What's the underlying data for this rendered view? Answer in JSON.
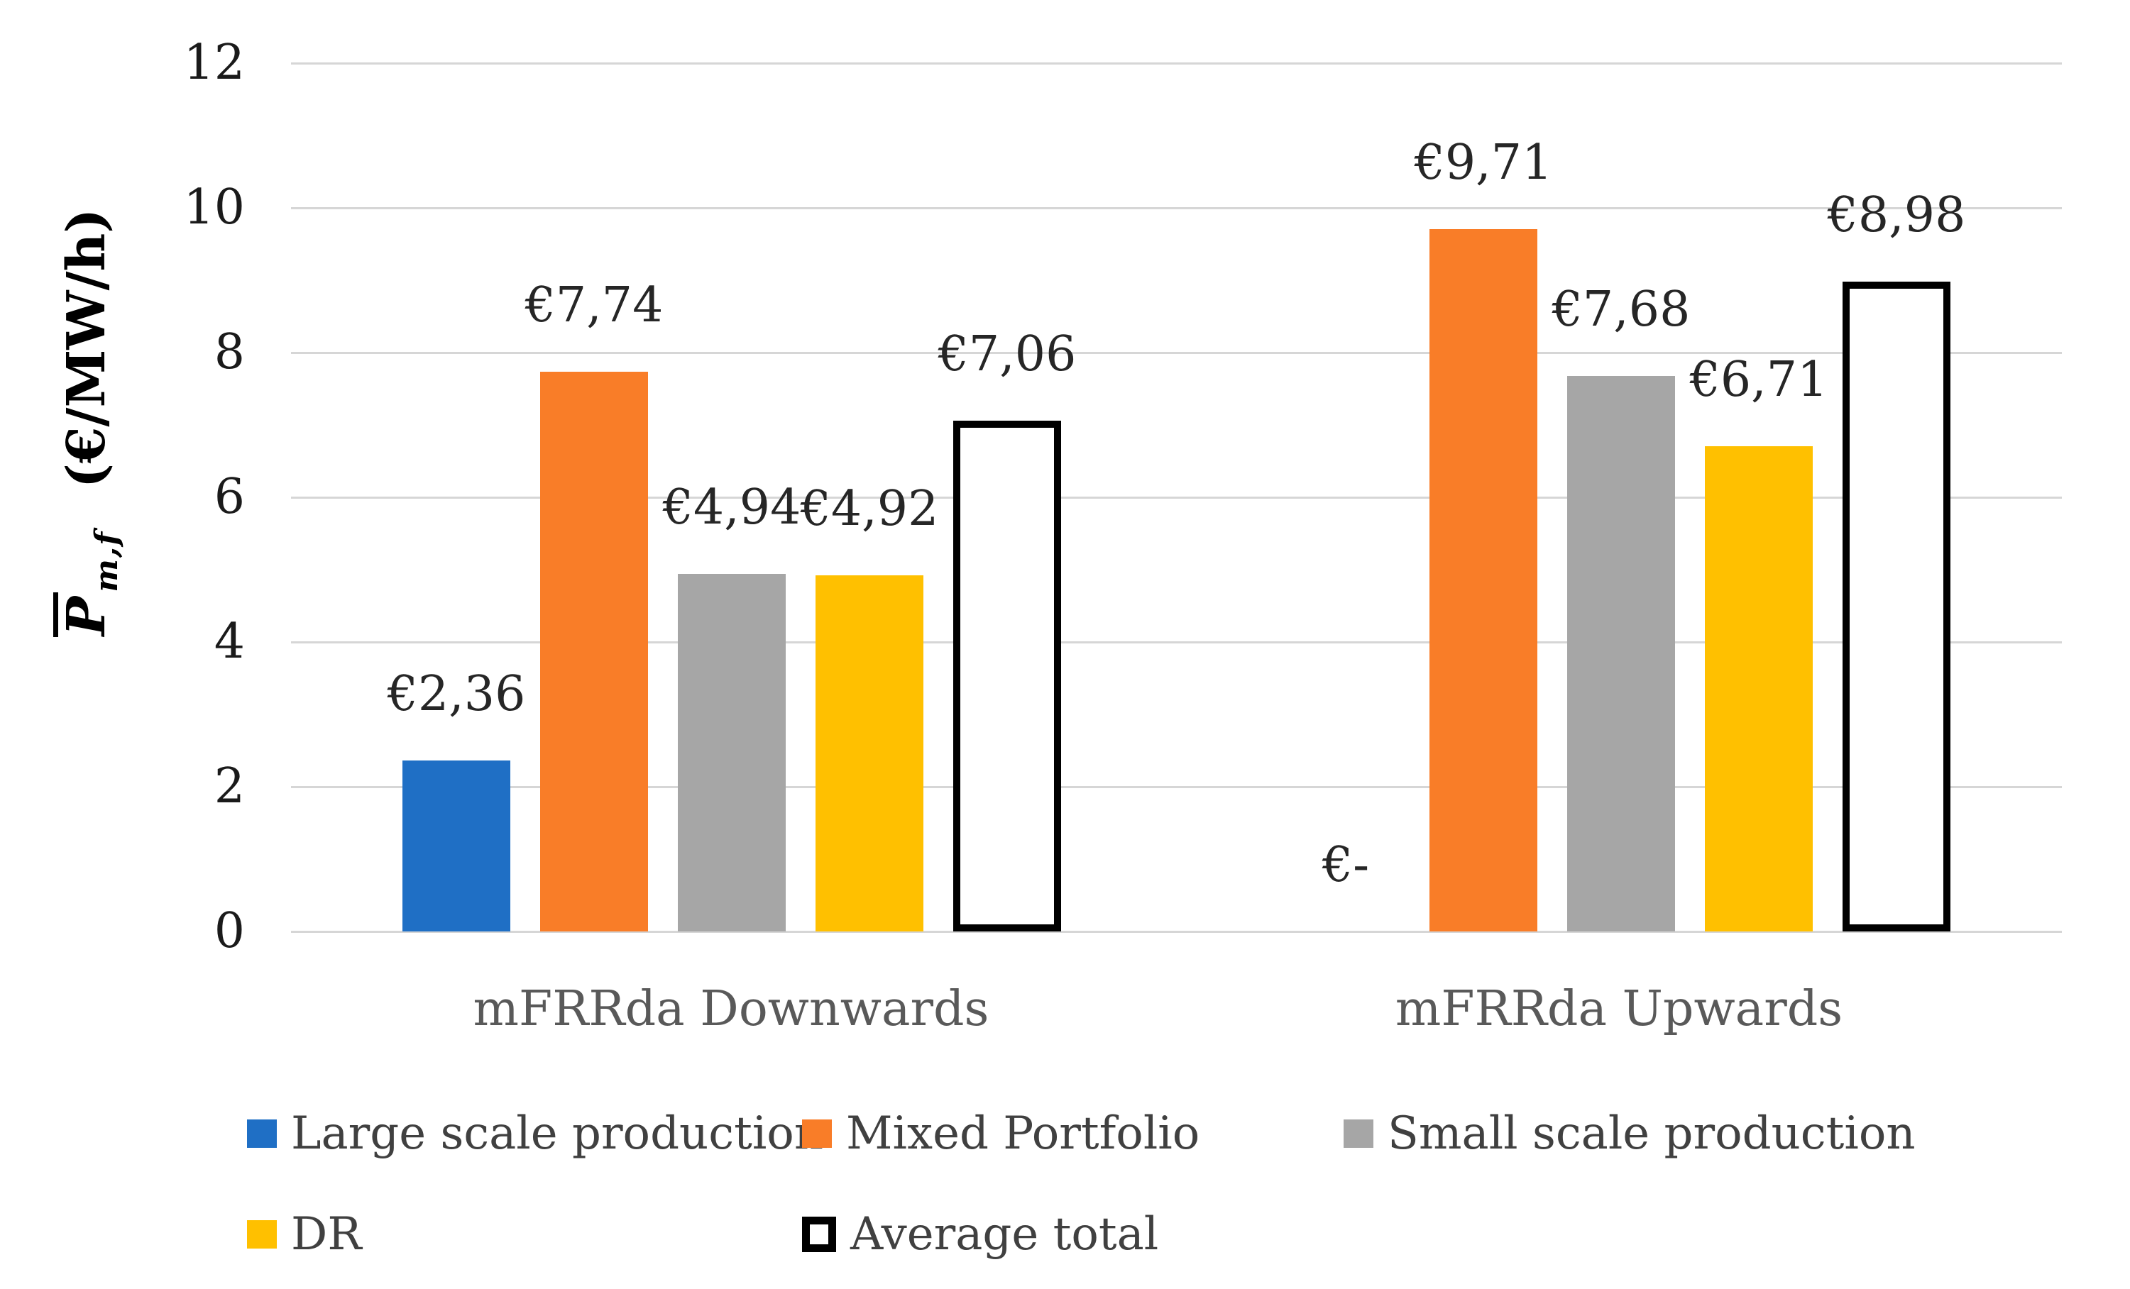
{
  "chart_data": {
    "type": "bar",
    "title": "",
    "categories": [
      "mFRRda Downwards",
      "mFRRda Upwards"
    ],
    "series": [
      {
        "name": "Large scale production",
        "color": "#1F6FC5",
        "values": [
          2.36,
          0
        ],
        "data_labels": [
          "€2,36",
          "€-"
        ]
      },
      {
        "name": "Mixed Portfolio",
        "color": "#F97D28",
        "values": [
          7.74,
          9.71
        ],
        "data_labels": [
          "€7,74",
          "€9,71"
        ]
      },
      {
        "name": "Small scale production",
        "color": "#A6A6A6",
        "values": [
          4.94,
          7.68
        ],
        "data_labels": [
          "€4,94",
          "€7,68"
        ]
      },
      {
        "name": "DR",
        "color": "#FFC000",
        "values": [
          4.92,
          6.71
        ],
        "data_labels": [
          "€4,92",
          "€6,71"
        ]
      },
      {
        "name": "Average total",
        "color": "#FFFFFF",
        "outline": "#000000",
        "values": [
          7.06,
          8.98
        ],
        "data_labels": [
          "€7,06",
          "€8,98"
        ]
      }
    ],
    "ylabel": {
      "symbol": "P",
      "subscript": "m,f",
      "units": "(€/MW/h)",
      "overbar": true
    },
    "y_axis": {
      "min": 0,
      "max": 12,
      "step": 2,
      "tick_labels": [
        "0",
        "2",
        "4",
        "6",
        "8",
        "10",
        "12"
      ]
    },
    "grid": true,
    "legend_position": "bottom",
    "legend_rows": [
      [
        "Large scale production",
        "Mixed Portfolio",
        "Small scale production"
      ],
      [
        "DR",
        "Average total"
      ]
    ],
    "styles": {
      "grid_color": "#D6D6D6",
      "tick_color": "#1A1A1A",
      "data_label_color": "#262626",
      "category_color": "#595959",
      "legend_color": "#404040",
      "background": "#FFFFFF"
    }
  }
}
